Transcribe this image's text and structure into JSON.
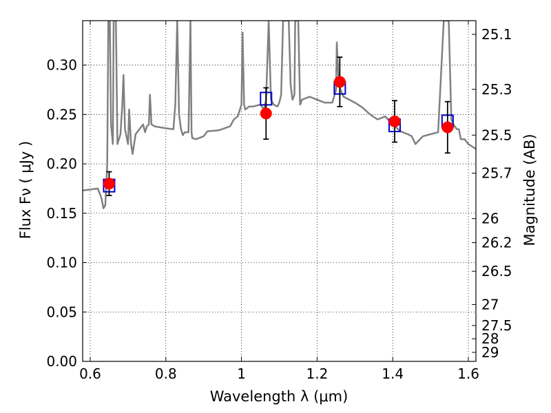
{
  "chart_data": {
    "type": "line",
    "xlabel": "Wavelength  λ (μm)",
    "ylabel": "Flux  Fν  ( μJy )",
    "y2label": "Magnitude (AB)",
    "xlim": [
      0.58,
      1.62
    ],
    "ylim": [
      0.0,
      0.345
    ],
    "x_ticks": [
      "0.6",
      "0.8",
      "1",
      "1.2",
      "1.4",
      "1.6"
    ],
    "y_ticks": [
      "0.00",
      "0.05",
      "0.10",
      "0.15",
      "0.20",
      "0.25",
      "0.30"
    ],
    "y2_ticks": [
      "25.1",
      "25.3",
      "25.5",
      "25.7",
      "26",
      "26.2",
      "26.5",
      "27",
      "27.5",
      "28",
      "29"
    ],
    "grid": true,
    "spectrum": {
      "color": "#808080",
      "points": [
        [
          0.58,
          0.173
        ],
        [
          0.62,
          0.175
        ],
        [
          0.63,
          0.165
        ],
        [
          0.635,
          0.155
        ],
        [
          0.64,
          0.158
        ],
        [
          0.645,
          0.2
        ],
        [
          0.648,
          0.345
        ],
        [
          0.652,
          0.345
        ],
        [
          0.655,
          0.24
        ],
        [
          0.66,
          0.22
        ],
        [
          0.662,
          0.345
        ],
        [
          0.668,
          0.345
        ],
        [
          0.672,
          0.22
        ],
        [
          0.68,
          0.23
        ],
        [
          0.685,
          0.26
        ],
        [
          0.688,
          0.29
        ],
        [
          0.692,
          0.235
        ],
        [
          0.7,
          0.22
        ],
        [
          0.703,
          0.255
        ],
        [
          0.708,
          0.22
        ],
        [
          0.712,
          0.21
        ],
        [
          0.72,
          0.23
        ],
        [
          0.73,
          0.235
        ],
        [
          0.74,
          0.24
        ],
        [
          0.745,
          0.232
        ],
        [
          0.75,
          0.238
        ],
        [
          0.755,
          0.24
        ],
        [
          0.758,
          0.27
        ],
        [
          0.762,
          0.24
        ],
        [
          0.77,
          0.238
        ],
        [
          0.8,
          0.236
        ],
        [
          0.82,
          0.235
        ],
        [
          0.825,
          0.26
        ],
        [
          0.83,
          0.345
        ],
        [
          0.835,
          0.25
        ],
        [
          0.84,
          0.235
        ],
        [
          0.845,
          0.229
        ],
        [
          0.85,
          0.232
        ],
        [
          0.86,
          0.232
        ],
        [
          0.865,
          0.345
        ],
        [
          0.868,
          0.232
        ],
        [
          0.87,
          0.226
        ],
        [
          0.88,
          0.225
        ],
        [
          0.9,
          0.228
        ],
        [
          0.91,
          0.233
        ],
        [
          0.94,
          0.234
        ],
        [
          0.97,
          0.238
        ],
        [
          0.98,
          0.245
        ],
        [
          0.99,
          0.248
        ],
        [
          1.0,
          0.26
        ],
        [
          1.003,
          0.333
        ],
        [
          1.007,
          0.26
        ],
        [
          1.01,
          0.255
        ],
        [
          1.02,
          0.258
        ],
        [
          1.03,
          0.258
        ],
        [
          1.05,
          0.26
        ],
        [
          1.06,
          0.255
        ],
        [
          1.065,
          0.265
        ],
        [
          1.072,
          0.345
        ],
        [
          1.078,
          0.265
        ],
        [
          1.085,
          0.26
        ],
        [
          1.095,
          0.258
        ],
        [
          1.1,
          0.262
        ],
        [
          1.105,
          0.27
        ],
        [
          1.11,
          0.345
        ],
        [
          1.125,
          0.345
        ],
        [
          1.13,
          0.28
        ],
        [
          1.135,
          0.265
        ],
        [
          1.14,
          0.27
        ],
        [
          1.142,
          0.345
        ],
        [
          1.15,
          0.345
        ],
        [
          1.155,
          0.26
        ],
        [
          1.16,
          0.265
        ],
        [
          1.18,
          0.268
        ],
        [
          1.2,
          0.265
        ],
        [
          1.22,
          0.262
        ],
        [
          1.24,
          0.262
        ],
        [
          1.25,
          0.275
        ],
        [
          1.252,
          0.323
        ],
        [
          1.256,
          0.29
        ],
        [
          1.26,
          0.277
        ],
        [
          1.27,
          0.268
        ],
        [
          1.3,
          0.262
        ],
        [
          1.32,
          0.257
        ],
        [
          1.34,
          0.25
        ],
        [
          1.36,
          0.245
        ],
        [
          1.38,
          0.248
        ],
        [
          1.4,
          0.24
        ],
        [
          1.42,
          0.233
        ],
        [
          1.44,
          0.23
        ],
        [
          1.45,
          0.228
        ],
        [
          1.46,
          0.22
        ],
        [
          1.48,
          0.228
        ],
        [
          1.5,
          0.23
        ],
        [
          1.52,
          0.232
        ],
        [
          1.535,
          0.345
        ],
        [
          1.548,
          0.345
        ],
        [
          1.555,
          0.245
        ],
        [
          1.56,
          0.24
        ],
        [
          1.57,
          0.235
        ],
        [
          1.575,
          0.235
        ],
        [
          1.58,
          0.225
        ],
        [
          1.59,
          0.225
        ],
        [
          1.6,
          0.22
        ],
        [
          1.62,
          0.215
        ]
      ]
    },
    "model_fluxes": {
      "color": "#0000cc",
      "marker": "open-square",
      "points": [
        [
          0.65,
          0.178
        ],
        [
          1.065,
          0.266
        ],
        [
          1.26,
          0.277
        ],
        [
          1.405,
          0.239
        ],
        [
          1.545,
          0.243
        ]
      ]
    },
    "observed_fluxes": {
      "color": "#ff0000",
      "marker": "filled-circle",
      "points": [
        [
          0.65,
          0.18,
          0.012
        ],
        [
          1.065,
          0.251,
          0.026
        ],
        [
          1.26,
          0.283,
          0.025
        ],
        [
          1.405,
          0.243,
          0.021
        ],
        [
          1.545,
          0.237,
          0.026
        ]
      ]
    }
  }
}
